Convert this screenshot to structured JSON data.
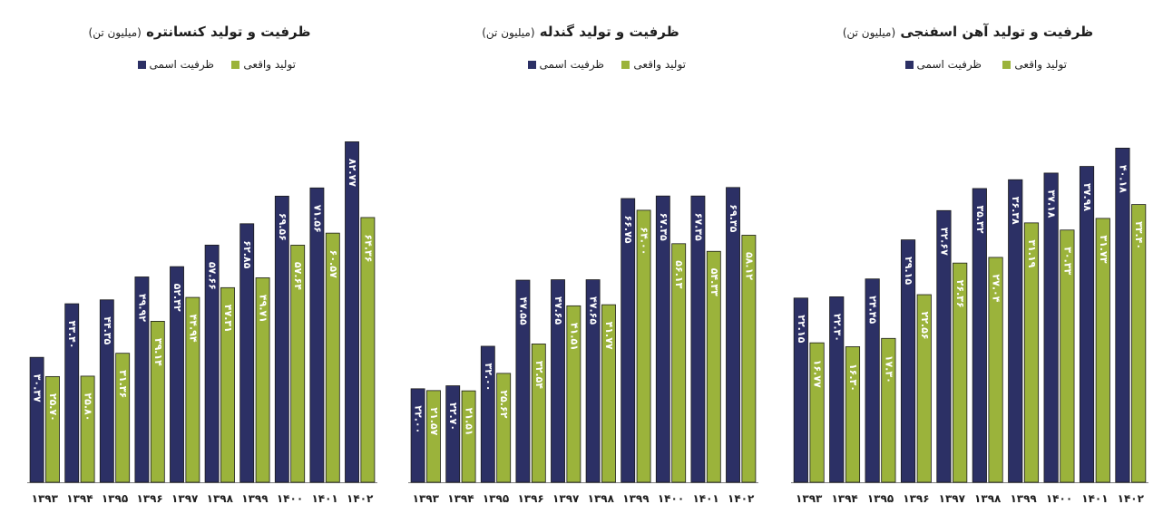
{
  "colors": {
    "capacity": "#2c3065",
    "production": "#9bb33b",
    "label": "#ffffff",
    "axis": "#7f7f7f"
  },
  "chart_data": [
    {
      "type": "bar",
      "title": "ظرفیت و تولید کنسانتره",
      "unit": "(میلیون تن)",
      "legend": [
        "ظرفیت اسمی",
        "تولید واقعی"
      ],
      "categories": [
        "۱۳۹۳",
        "۱۳۹۴",
        "۱۳۹۵",
        "۱۳۹۶",
        "۱۳۹۷",
        "۱۳۹۸",
        "۱۳۹۹",
        "۱۴۰۰",
        "۱۴۰۱",
        "۱۴۰۲"
      ],
      "series": [
        {
          "name": "ظرفیت اسمی",
          "values": [
            30.37,
            43.4,
            44.35,
            49.92,
            52.42,
            57.66,
            62.85,
            69.56,
            71.56,
            82.77
          ],
          "labels": [
            "۳۰.۳۷",
            "۴۳.۴۰",
            "۴۴.۳۵",
            "۴۹.۹۲",
            "۵۲.۴۲",
            "۵۷.۶۶",
            "۶۲.۸۵",
            "۶۹.۵۶",
            "۷۱.۵۶",
            "۸۲.۷۷"
          ]
        },
        {
          "name": "تولید واقعی",
          "values": [
            25.7,
            25.8,
            31.36,
            39.14,
            44.94,
            47.31,
            49.71,
            57.64,
            60.57,
            64.36
          ],
          "labels": [
            "۲۵.۷۰",
            "۲۵.۸۰",
            "۳۱.۳۶",
            "۳۹.۱۴",
            "۴۴.۹۴",
            "۴۷.۳۱",
            "۴۹.۷۱",
            "۵۷.۶۴",
            "۶۰.۵۷",
            "۶۴.۳۶"
          ]
        }
      ],
      "ylim": [
        0,
        93
      ]
    },
    {
      "type": "bar",
      "title": "ظرفیت و تولید گندله",
      "unit": "(میلیون تن)",
      "legend": [
        "ظرفیت اسمی",
        "تولید واقعی"
      ],
      "categories": [
        "۱۳۹۳",
        "۱۳۹۴",
        "۱۳۹۵",
        "۱۳۹۶",
        "۱۳۹۷",
        "۱۳۹۸",
        "۱۳۹۹",
        "۱۴۰۰",
        "۱۴۰۱",
        "۱۴۰۲"
      ],
      "series": [
        {
          "name": "ظرفیت اسمی",
          "values": [
            22.0,
            22.7,
            32.0,
            47.55,
            47.65,
            47.65,
            66.75,
            67.35,
            67.35,
            69.35
          ],
          "labels": [
            "۲۲.۰۰",
            "۲۲.۷۰",
            "۳۲.۰۰",
            "۴۷.۵۵",
            "۴۷.۶۵",
            "۴۷.۶۵",
            "۶۶.۷۵",
            "۶۷.۳۵",
            "۶۷.۳۵",
            "۶۹.۳۵"
          ]
        },
        {
          "name": "تولید واقعی",
          "values": [
            21.57,
            21.51,
            25.62,
            32.54,
            41.51,
            41.77,
            64.0,
            56.13,
            54.33,
            58.12
          ],
          "labels": [
            "۲۱.۵۷",
            "۲۱.۵۱",
            "۲۵.۶۲",
            "۳۲.۵۴",
            "۴۱.۵۱",
            "۴۱.۷۷",
            "۶۴.۰۰",
            "۵۶.۱۳",
            "۵۴.۳۳",
            "۵۸.۱۲"
          ]
        }
      ],
      "ylim": [
        0,
        90
      ]
    },
    {
      "type": "bar",
      "title": "ظرفیت و تولید آهن اسفنجی",
      "unit": "(میلیون تن)",
      "legend": [
        "ظرفیت اسمی",
        "تولید واقعی"
      ],
      "categories": [
        "۱۳۹۳",
        "۱۳۹۴",
        "۱۳۹۵",
        "۱۳۹۶",
        "۱۳۹۷",
        "۱۳۹۸",
        "۱۳۹۹",
        "۱۴۰۰",
        "۱۴۰۱",
        "۱۴۰۲"
      ],
      "series": [
        {
          "name": "ظرفیت اسمی",
          "values": [
            22.15,
            22.3,
            24.45,
            29.15,
            32.67,
            35.32,
            36.38,
            37.18,
            37.98,
            40.18
          ],
          "labels": [
            "۲۲.۱۵",
            "۲۲.۳۰",
            "۲۴.۴۵",
            "۲۹.۱۵",
            "۳۲.۶۷",
            "۳۵.۳۲",
            "۳۶.۳۸",
            "۳۷.۱۸",
            "۳۷.۹۸",
            "۴۰.۱۸"
          ]
        },
        {
          "name": "تولید واقعی",
          "values": [
            16.77,
            16.3,
            17.3,
            22.56,
            26.36,
            27.04,
            31.19,
            30.33,
            31.73,
            33.4
          ],
          "labels": [
            "۱۶.۷۷",
            "۱۶.۳۰",
            "۱۷.۳۰",
            "۲۲.۵۶",
            "۲۶.۳۶",
            "۲۷.۰۴",
            "۳۱.۱۹",
            "۳۰.۳۳",
            "۳۱.۷۳",
            "۳۳.۴۰"
          ]
        }
      ],
      "ylim": [
        0,
        46
      ]
    }
  ]
}
